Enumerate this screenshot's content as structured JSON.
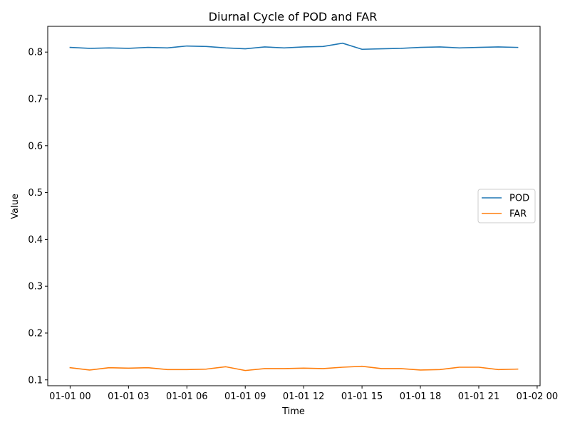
{
  "chart_data": {
    "type": "line",
    "title": "Diurnal Cycle of POD and FAR",
    "xlabel": "Time",
    "ylabel": "Value",
    "x_hours": [
      0,
      1,
      2,
      3,
      4,
      5,
      6,
      7,
      8,
      9,
      10,
      11,
      12,
      13,
      14,
      15,
      16,
      17,
      18,
      19,
      20,
      21,
      22,
      23
    ],
    "xlim": [
      -1.15,
      24.15
    ],
    "ylim": [
      0.0875,
      0.855
    ],
    "x_ticks": [
      {
        "hour": 0,
        "label": "01-01 00"
      },
      {
        "hour": 3,
        "label": "01-01 03"
      },
      {
        "hour": 6,
        "label": "01-01 06"
      },
      {
        "hour": 9,
        "label": "01-01 09"
      },
      {
        "hour": 12,
        "label": "01-01 12"
      },
      {
        "hour": 15,
        "label": "01-01 15"
      },
      {
        "hour": 18,
        "label": "01-01 18"
      },
      {
        "hour": 21,
        "label": "01-01 21"
      },
      {
        "hour": 24,
        "label": "01-02 00"
      }
    ],
    "y_ticks": [
      {
        "value": 0.1,
        "label": "0.1"
      },
      {
        "value": 0.2,
        "label": "0.2"
      },
      {
        "value": 0.3,
        "label": "0.3"
      },
      {
        "value": 0.4,
        "label": "0.4"
      },
      {
        "value": 0.5,
        "label": "0.5"
      },
      {
        "value": 0.6,
        "label": "0.6"
      },
      {
        "value": 0.7,
        "label": "0.7"
      },
      {
        "value": 0.8,
        "label": "0.8"
      }
    ],
    "series": [
      {
        "name": "POD",
        "color": "#1f77b4",
        "values": [
          0.81,
          0.808,
          0.809,
          0.808,
          0.81,
          0.809,
          0.813,
          0.812,
          0.809,
          0.807,
          0.811,
          0.809,
          0.811,
          0.812,
          0.819,
          0.806,
          0.807,
          0.808,
          0.81,
          0.811,
          0.809,
          0.81,
          0.811,
          0.81
        ]
      },
      {
        "name": "FAR",
        "color": "#ff7f0e",
        "values": [
          0.126,
          0.121,
          0.126,
          0.125,
          0.126,
          0.122,
          0.122,
          0.123,
          0.128,
          0.12,
          0.124,
          0.124,
          0.125,
          0.124,
          0.127,
          0.129,
          0.124,
          0.124,
          0.121,
          0.122,
          0.127,
          0.127,
          0.122,
          0.123
        ]
      }
    ],
    "legend": {
      "position": "center-right"
    },
    "grid": false
  }
}
